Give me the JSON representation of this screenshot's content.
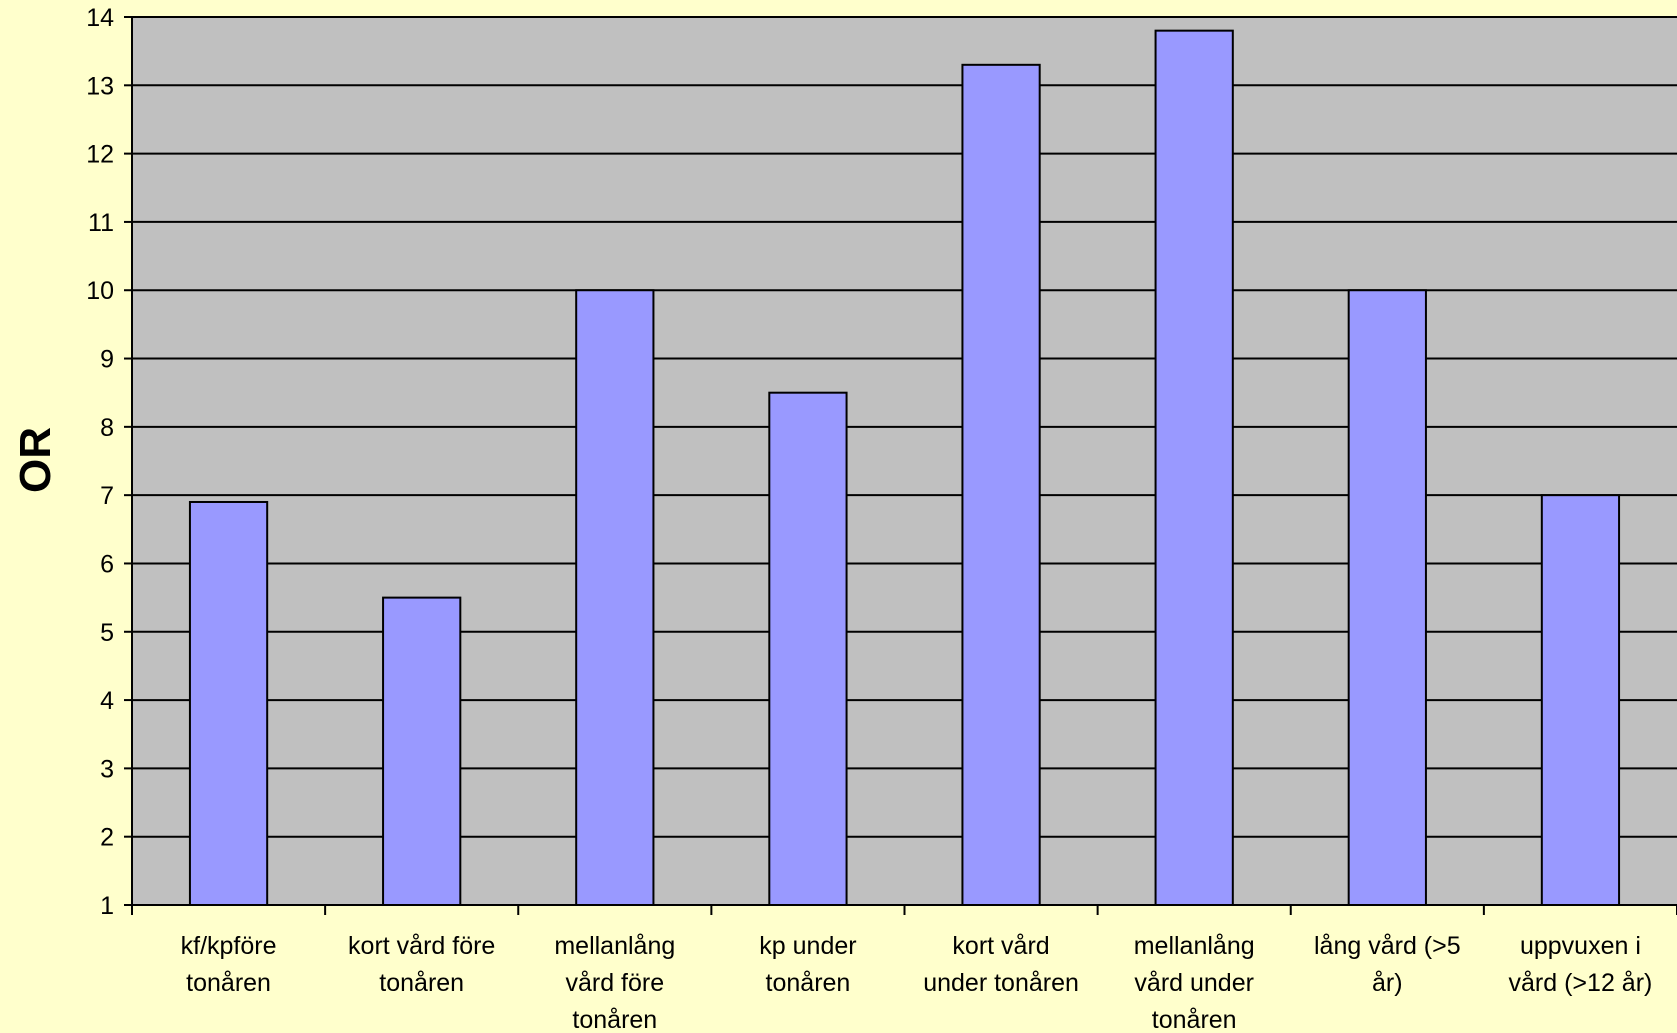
{
  "chart_data": {
    "type": "bar",
    "title": "",
    "xlabel": "",
    "ylabel": "OR",
    "ylim": [
      1,
      14
    ],
    "yticks": [
      1,
      2,
      3,
      4,
      5,
      6,
      7,
      8,
      9,
      10,
      11,
      12,
      13,
      14
    ],
    "grid": true,
    "legend": "none",
    "categories": [
      [
        "kf/kpföre",
        "tonåren"
      ],
      [
        "kort vård före",
        "tonåren"
      ],
      [
        "mellanlång",
        "vård före",
        "tonåren"
      ],
      [
        "kp under",
        "tonåren"
      ],
      [
        "kort vård",
        "under tonåren"
      ],
      [
        "mellanlång",
        "vård under",
        "tonåren"
      ],
      [
        "lång vård (>5",
        "år)"
      ],
      [
        "uppvuxen i",
        "vård (>12 år)"
      ]
    ],
    "values": [
      6.9,
      5.5,
      10.0,
      8.5,
      13.3,
      13.8,
      10.0,
      7.0
    ],
    "colors": {
      "background": "#ffffcc",
      "plot_area": "#c0c0c0",
      "bar_fill": "#9999ff",
      "bar_stroke": "#000000",
      "grid": "#000000"
    }
  }
}
